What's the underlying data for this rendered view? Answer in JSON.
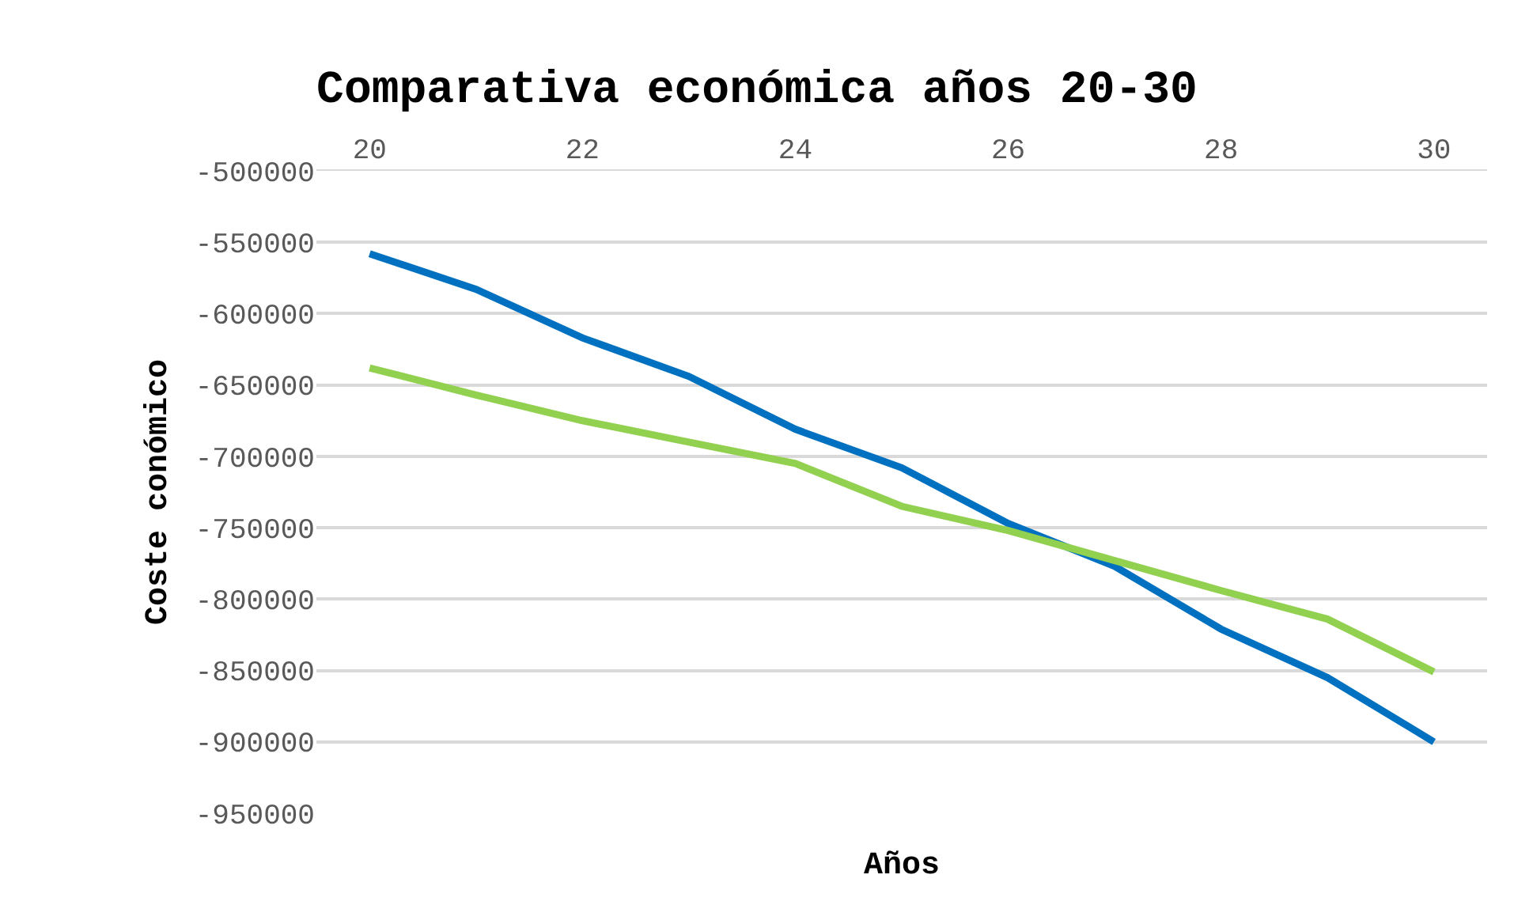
{
  "chart_data": {
    "type": "line",
    "title": "Comparativa económica años 20-30",
    "xlabel": "Años",
    "ylabel": "Coste conómico",
    "x": [
      20,
      21,
      22,
      23,
      24,
      25,
      26,
      27,
      28,
      29,
      30
    ],
    "series": [
      {
        "color": "#0070c0",
        "values": [
          -558000,
          -583000,
          -617000,
          -644000,
          -681000,
          -708000,
          -747000,
          -777000,
          -821000,
          -855000,
          -900000
        ]
      },
      {
        "color": "#92d050",
        "values": [
          -638000,
          -657000,
          -675000,
          -690000,
          -705000,
          -735000,
          -752000,
          -773000,
          -794000,
          -814000,
          -851000
        ]
      }
    ],
    "xlim": [
      19.5,
      30.5
    ],
    "xticks": [
      20,
      22,
      24,
      26,
      28,
      30
    ],
    "ylim": [
      -950000,
      -500000
    ],
    "yticks": [
      -950000,
      -900000,
      -850000,
      -800000,
      -750000,
      -700000,
      -650000,
      -600000,
      -550000,
      -500000
    ],
    "grid": "y",
    "marker": "none",
    "line_style": "solid"
  }
}
